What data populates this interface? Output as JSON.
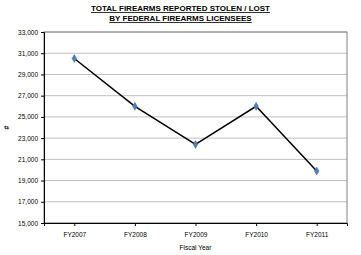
{
  "chart_data": {
    "type": "line",
    "title": [
      "TOTAL FIREARMS REPORTED STOLEN / LOST",
      "BY FEDERAL FIREARMS LICENSEES"
    ],
    "x_label": "Fiscal Year",
    "y_label": "#",
    "categories": [
      "FY2007",
      "FY2008",
      "FY2009",
      "FY2010",
      "FY2011"
    ],
    "series": [
      {
        "name": "Total firearms",
        "color": "#000000",
        "marker": "diamond",
        "values": [
          30500,
          26000,
          22400,
          26000,
          19900
        ]
      }
    ],
    "ylim": [
      15000,
      33000
    ],
    "yticks": [
      {
        "value": 15000,
        "label": "15,000"
      },
      {
        "value": 17000,
        "label": "17,000"
      },
      {
        "value": 19000,
        "label": "19,000"
      },
      {
        "value": 21000,
        "label": "21,000"
      },
      {
        "value": 23000,
        "label": "23,000"
      },
      {
        "value": 25000,
        "label": "25,000"
      },
      {
        "value": 27000,
        "label": "27,000"
      },
      {
        "value": 29000,
        "label": "29,000"
      },
      {
        "value": 31000,
        "label": "31,000"
      },
      {
        "value": 33000,
        "label": "33,000"
      }
    ],
    "grid": true
  }
}
